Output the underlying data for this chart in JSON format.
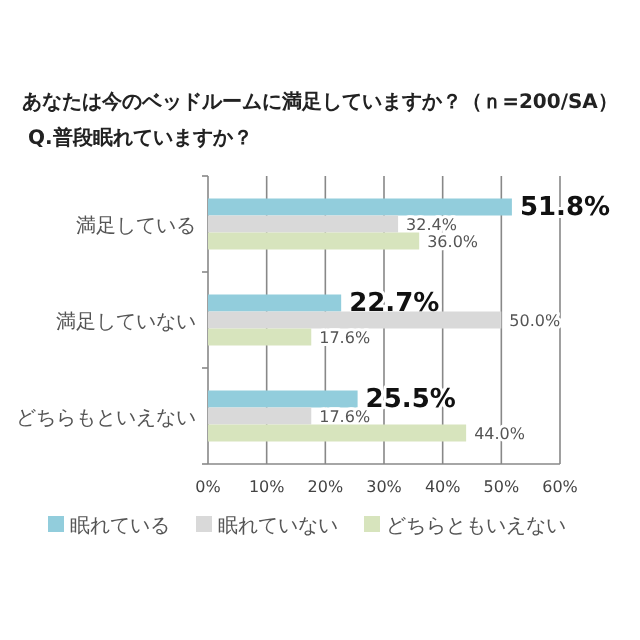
{
  "chart_data": {
    "type": "bar",
    "orientation": "horizontal",
    "title": "あなたは今のベッドルームに満足していますか？（ｎ=200/SA）",
    "subtitle": "Q.普段眠れていますか？",
    "categories": [
      "満足している",
      "満足していない",
      "どちらもといえない"
    ],
    "series": [
      {
        "name": "眠れている",
        "color": "#92cddc",
        "values": [
          51.8,
          22.7,
          25.5
        ],
        "value_labels": [
          "51.8%",
          "22.7%",
          "25.5%"
        ]
      },
      {
        "name": "眠れていない",
        "color": "#d9d9d9",
        "values": [
          32.4,
          50.0,
          17.6
        ],
        "value_labels": [
          "32.4%",
          "50.0%",
          "17.6%"
        ]
      },
      {
        "name": "どちらともいえない",
        "color": "#d7e4bd",
        "values": [
          36.0,
          17.6,
          44.0
        ],
        "value_labels": [
          "36.0%",
          "17.6%",
          "44.0%"
        ]
      }
    ],
    "xlim": [
      0,
      60
    ],
    "xticks": [
      {
        "value": 0,
        "label": "0%"
      },
      {
        "value": 10,
        "label": "10%"
      },
      {
        "value": 20,
        "label": "20%"
      },
      {
        "value": 30,
        "label": "30%"
      },
      {
        "value": 40,
        "label": "40%"
      },
      {
        "value": 50,
        "label": "50%"
      },
      {
        "value": 60,
        "label": "60%"
      }
    ],
    "grid": "x",
    "legend": "bottom"
  }
}
